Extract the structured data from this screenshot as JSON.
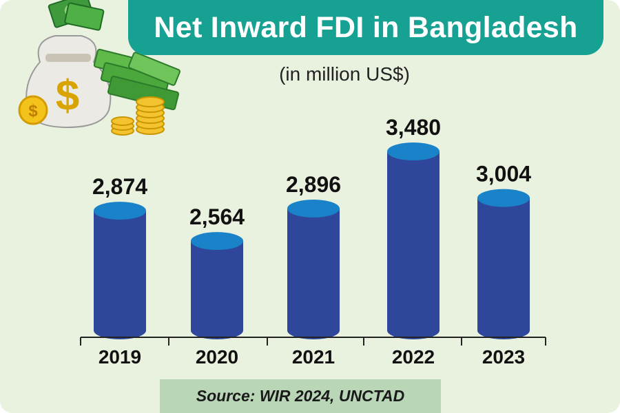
{
  "chart_data": {
    "type": "bar",
    "title": "Net Inward FDI in Bangladesh",
    "subtitle": "(in million US$)",
    "categories": [
      "2019",
      "2020",
      "2021",
      "2022",
      "2023"
    ],
    "values": [
      2874,
      2564,
      2896,
      3480,
      3004
    ],
    "value_labels": [
      "2,874",
      "2,564",
      "2,896",
      "3,480",
      "3,004"
    ],
    "xlabel": "",
    "ylabel": "",
    "grid": false,
    "legend": "none"
  },
  "source": "Source: WIR 2024, UNCTAD",
  "colors": {
    "banner": "#16a193",
    "background": "#e9f1df",
    "bar_body": "#2e479b",
    "bar_top": "#1a82c8",
    "source_box": "#b9d6b7"
  },
  "decoration": {
    "icon": "money-bag-and-cash-icon"
  }
}
